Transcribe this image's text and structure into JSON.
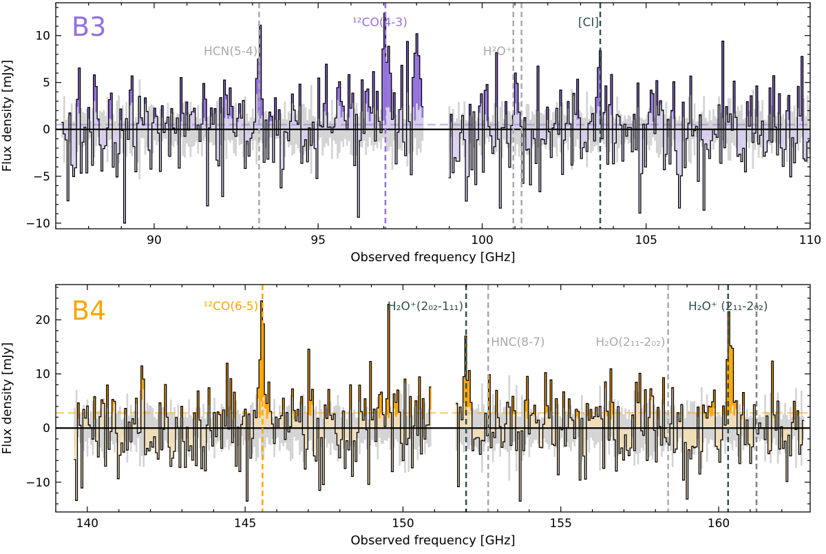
{
  "chart_data": [
    {
      "type": "line",
      "panel_label": "B3",
      "panel_label_color": "#9370db",
      "step_style": "steps-mid",
      "xlabel": "Observed frequency [GHz]",
      "ylabel": "Flux density [mJy]",
      "xlim": [
        87.0,
        110.0
      ],
      "ylim": [
        -10.6,
        13.5
      ],
      "xticks": [
        90,
        95,
        100,
        105,
        110
      ],
      "xtick_labels": [
        "90",
        "95",
        "100",
        "105",
        "110"
      ],
      "yticks": [
        -10,
        -5,
        0,
        5,
        10
      ],
      "ytick_labels": [
        "−10",
        "−5",
        "0",
        "5",
        "10"
      ],
      "grid": false,
      "spectrum_segments": [
        [
          87.2,
          98.2
        ],
        [
          99.0,
          110.0
        ]
      ],
      "channel_width_ghz": 0.0575,
      "noise_rms_mjy": 1.3,
      "flux_sigma_mjy": 3.4,
      "flux_extremes": {
        "min": -10.0,
        "max": 12.4
      },
      "fill_color": "#9370db",
      "fill_light_color": "#d6ccf0",
      "noise_color": "#d3d3d3",
      "stacked_level_mjy": 0.5,
      "lines": [
        {
          "label": "HCN(5-4)",
          "x": 93.2,
          "color": "#a9a9a9",
          "amplitude": 7.5
        },
        {
          "label": "¹²CO(4-3)",
          "x": 97.05,
          "color": "#9370db",
          "amplitude": 12.4
        },
        {
          "label": "H²O⁺",
          "x": 100.95,
          "color": "#a9a9a9",
          "amplitude": 0
        },
        {
          "label": "",
          "x": 101.2,
          "color": "#a9a9a9",
          "amplitude": 0
        },
        {
          "label": "[CI]",
          "x": 103.6,
          "color": "#2f4f4f",
          "amplitude": 8.4
        }
      ]
    },
    {
      "type": "line",
      "panel_label": "B4",
      "panel_label_color": "#ffa500",
      "step_style": "steps-mid",
      "xlabel": "Observed frequency [GHz]",
      "ylabel": "Flux density [mJy]",
      "xlim": [
        139.0,
        162.9
      ],
      "ylim": [
        -15.5,
        26.5
      ],
      "xticks": [
        140,
        145,
        150,
        155,
        160
      ],
      "xtick_labels": [
        "140",
        "145",
        "150",
        "155",
        "160"
      ],
      "yticks": [
        -10,
        0,
        10,
        20
      ],
      "ytick_labels": [
        "−10",
        "0",
        "10",
        "20"
      ],
      "grid": false,
      "spectrum_segments": [
        [
          139.6,
          150.9
        ],
        [
          151.7,
          162.7
        ]
      ],
      "channel_width_ghz": 0.0575,
      "noise_rms_mjy": 2.5,
      "flux_sigma_mjy": 5.0,
      "flux_extremes": {
        "min": -13.5,
        "max": 24.5
      },
      "fill_color": "#ffa500",
      "fill_light_color": "#f5deb3",
      "noise_color": "#d3d3d3",
      "stacked_level_mjy": 2.8,
      "lines": [
        {
          "label": "¹²CO(6-5)",
          "x": 145.55,
          "color": "#ffa500",
          "amplitude": 23.5
        },
        {
          "label": "H₂O⁺(2₀₂-1₁₁)",
          "x": 152.0,
          "color": "#2f4f4f",
          "amplitude": 17.0
        },
        {
          "label": "HNC(8-7)",
          "x": 152.7,
          "color": "#a9a9a9",
          "amplitude": 0
        },
        {
          "label": "H₂O(2₁₁-2₀₂)",
          "x": 158.4,
          "color": "#a9a9a9",
          "amplitude": 0
        },
        {
          "label": "H₂O⁺ (2₁₁-2₀₂)",
          "x": 160.3,
          "color": "#2f4f4f",
          "amplitude": 21.5
        },
        {
          "label": "",
          "x": 161.2,
          "color": "#808080",
          "amplitude": 0
        }
      ]
    }
  ]
}
